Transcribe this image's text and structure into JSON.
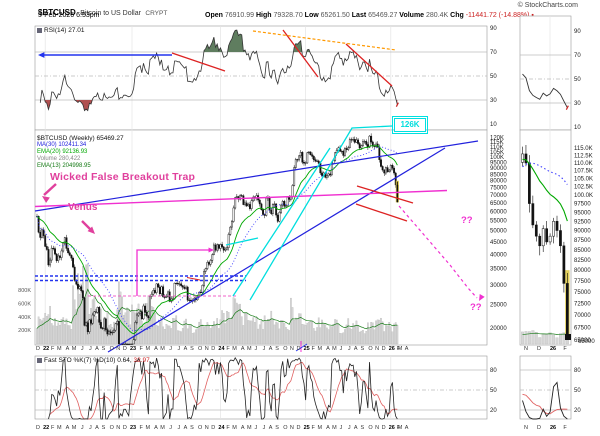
{
  "header": {
    "symbol": "$BTCUSD",
    "name": "Bitcoin to US Dollar",
    "exchange": "CRYPT",
    "copyright": "© StockCharts.com",
    "datetime": "5-Feb-2026 6:53pm",
    "open_label": "Open",
    "open": "76910.99",
    "high_label": "High",
    "high": "79328.70",
    "low_label": "Low",
    "low": "65261.50",
    "last_label": "Last",
    "last": "65469.27",
    "volume_label": "Volume",
    "volume": "280.4K",
    "chg_label": "Chg",
    "chg": "-11441.72 (-14.88%)",
    "chg_marker": "▪"
  },
  "legends": {
    "rsi": "RSI(14) 27.01",
    "price_title": "$BTCUSD (Weekly) 65469.27",
    "ma30": "MA(30) 102411.34",
    "ema20": "EMA(20) 92136.93",
    "volume": "Volume 280,422",
    "ema13": "EMA(13) 204998.95",
    "stoch": "Fast STO %K(7) %D(10) 0.64,",
    "stoch_d": "32.97"
  },
  "annotations": {
    "trap": "Wicked False Breakout Trap",
    "venus": "Venus",
    "target": "126K",
    "q1": "??",
    "q2": "??"
  },
  "axes": {
    "rsi_ticks": [
      90,
      70,
      50,
      30,
      10
    ],
    "stoch_ticks": [
      80,
      50,
      20
    ],
    "price_ticks_main_k": [
      120,
      115,
      110,
      105,
      100,
      95,
      90,
      85,
      80,
      75,
      70,
      65,
      60,
      55,
      50,
      45,
      40,
      35,
      30,
      25,
      20
    ],
    "price_ticks_mini_k": [
      115,
      112.5,
      110,
      107.5,
      105,
      102.5,
      100,
      97.5,
      95,
      92.5,
      90,
      87.5,
      85,
      82.5,
      80,
      77.5,
      75,
      72.5,
      70,
      67.5,
      65
    ],
    "volume_ticks": [
      "800K",
      "600K",
      "400K",
      "200K"
    ],
    "months_main": [
      "D",
      "*22",
      "F",
      "M",
      "A",
      "M",
      "J",
      "J",
      "A",
      "S",
      "O",
      "N",
      "D",
      "*23",
      "F",
      "M",
      "A",
      "M",
      "J",
      "J",
      "A",
      "S",
      "O",
      "N",
      "D",
      "*24",
      "F",
      "M",
      "A",
      "M",
      "J",
      "J",
      "A",
      "S",
      "O",
      "N",
      "D",
      "*25",
      "F",
      "M",
      "A",
      "M",
      "J",
      "J",
      "A",
      "S",
      "O",
      "N",
      "D",
      "*26",
      "F",
      "M",
      "A"
    ],
    "months_mini": [
      "N",
      "D",
      "*26",
      "F"
    ],
    "mini_last_price": "65000"
  },
  "chart_data": {
    "type": "candlestick",
    "timeframe": "weekly",
    "symbol": "$BTCUSD",
    "x_range": [
      "Dec 2021",
      "Feb 2026"
    ],
    "price_scale": "log",
    "closes_k": [
      57.2,
      49.3,
      46.9,
      50.4,
      47.7,
      43.1,
      41.9,
      36.2,
      37.9,
      42.4,
      42.2,
      40.1,
      37.7,
      39.4,
      38.8,
      41.3,
      44.5,
      46.8,
      42.3,
      40.6,
      39.7,
      38.6,
      35.5,
      31.3,
      30.2,
      29.0,
      29.5,
      28.4,
      26.6,
      20.5,
      21.0,
      19.3,
      21.6,
      20.9,
      22.6,
      23.3,
      23.2,
      24.3,
      21.1,
      20.0,
      19.9,
      21.8,
      19.7,
      18.9,
      19.3,
      19.1,
      19.2,
      19.6,
      20.8,
      21.3,
      16.3,
      16.7,
      16.5,
      17.1,
      17.1,
      16.8,
      16.5,
      16.6,
      17.0,
      17.9,
      21.1,
      22.6,
      23.0,
      23.3,
      21.8,
      24.6,
      23.2,
      22.4,
      22.0,
      26.9,
      27.5,
      28.5,
      27.9,
      30.3,
      29.4,
      27.6,
      29.5,
      26.8,
      26.7,
      26.9,
      28.1,
      25.7,
      26.3,
      26.3,
      30.5,
      30.5,
      30.3,
      30.3,
      29.8,
      29.4,
      29.0,
      29.4,
      26.0,
      26.0,
      25.9,
      25.8,
      26.5,
      26.1,
      26.9,
      28.0,
      27.9,
      29.9,
      34.1,
      35.0,
      37.1,
      36.4,
      37.8,
      39.9,
      43.7,
      41.6,
      43.8,
      42.3,
      43.9,
      42.9,
      41.6,
      42.0,
      42.6,
      48.3,
      51.7,
      54.5,
      61.9,
      68.3,
      68.9,
      67.2,
      69.6,
      69.4,
      63.9,
      64.9,
      63.1,
      64.0,
      61.5,
      66.3,
      68.6,
      67.8,
      69.6,
      66.7,
      64.3,
      60.9,
      58.2,
      57.7,
      67.9,
      68.3,
      60.7,
      58.7,
      64.1,
      64.3,
      57.9,
      54.6,
      59.4,
      63.6,
      65.9,
      62.9,
      63.2,
      68.4,
      67.1,
      68.8,
      76.5,
      90.6,
      97.7,
      97.3,
      101.1,
      104.5,
      95.2,
      94.4,
      94.6,
      104.1,
      104.8,
      102.1,
      100.6,
      97.5,
      96.2,
      96.3,
      94.3,
      86.1,
      83.9,
      86.1,
      82.6,
      83.8,
      85.3,
      84.5,
      94.0,
      96.9,
      104.2,
      106.4,
      109.1,
      105.6,
      105.7,
      101.5,
      108.4,
      107.1,
      109.2,
      117.9,
      117.3,
      118.1,
      114.8,
      117.5,
      113.5,
      108.8,
      111.3,
      115.8,
      115.8,
      112.5,
      109.7,
      121.7,
      115.2,
      111.0,
      110.2,
      113.0,
      110.0,
      97.5,
      91.5,
      88.5,
      86.0,
      90.5,
      87.0,
      88.5,
      92.5,
      90.0,
      86.0,
      76.911,
      65.469
    ],
    "month_week_counts": [
      5,
      4,
      4,
      5,
      4,
      5,
      5,
      4,
      4,
      5,
      4,
      4,
      5,
      5,
      4,
      5,
      4,
      5,
      5,
      4,
      4,
      5,
      4,
      4,
      5,
      4,
      4,
      5,
      4,
      4,
      5,
      4,
      4,
      5,
      4,
      4,
      5,
      4,
      4,
      5,
      4,
      4,
      5,
      4,
      4,
      5,
      4,
      4,
      5,
      4,
      1,
      4,
      4
    ],
    "volumes_monthly_k": [
      350,
      420,
      330,
      300,
      280,
      780,
      900,
      520,
      400,
      380,
      300,
      720,
      400,
      450,
      380,
      620,
      350,
      280,
      320,
      240,
      300,
      220,
      300,
      340,
      320,
      380,
      420,
      520,
      380,
      300,
      300,
      320,
      380,
      300,
      280,
      520,
      400,
      350,
      280,
      320,
      260,
      300,
      240,
      300,
      260,
      240,
      300,
      340,
      260,
      240,
      280
    ],
    "indicators": {
      "rsi_period": 14,
      "sma": 30,
      "ema": 20,
      "volume_ema": 13,
      "stoch": "%K(7) %D(10)"
    },
    "last_bar": {
      "open": 76910.99,
      "high": 79328.7,
      "low": 65261.5,
      "close": 65469.27,
      "volume": "280.4K",
      "change": -11441.72,
      "change_pct": -14.88,
      "rsi": 27.01,
      "stoch_k": 0.64,
      "stoch_d": 32.97
    },
    "colors": {
      "magenta": "#f030d0",
      "pink": "#e0409d",
      "cyan": "#00dede",
      "blue": "#2222dd",
      "red": "#dd2222",
      "orange": "#ff9900",
      "green_ema": "#00a800",
      "green_volema": "#157a15",
      "rsi_fill_high": "#5f7d5f",
      "rsi_fill_low": "#b05050",
      "yellow": "#dec83f"
    }
  }
}
